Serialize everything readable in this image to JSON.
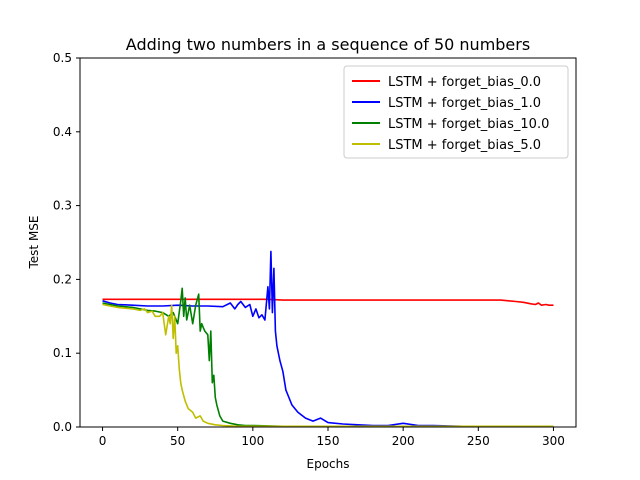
{
  "chart_data": {
    "type": "line",
    "title": "Adding two numbers in a sequence of 50 numbers",
    "xlabel": "Epochs",
    "ylabel": "Test MSE",
    "xlim": [
      -15,
      315
    ],
    "ylim": [
      0,
      0.5
    ],
    "xticks": [
      0,
      50,
      100,
      150,
      200,
      250,
      300
    ],
    "yticks": [
      0.0,
      0.1,
      0.2,
      0.3,
      0.4,
      0.5
    ],
    "ytick_labels": [
      "0.0",
      "0.1",
      "0.2",
      "0.3",
      "0.4",
      "0.5"
    ],
    "grid": false,
    "legend_position": "top-right",
    "series": [
      {
        "name": "LSTM + forget_bias_0.0",
        "color": "#ff0000",
        "x": [
          0,
          10,
          20,
          30,
          40,
          50,
          60,
          70,
          80,
          90,
          100,
          110,
          120,
          130,
          140,
          150,
          160,
          170,
          180,
          190,
          200,
          210,
          220,
          230,
          240,
          250,
          260,
          265,
          270,
          275,
          280,
          285,
          288,
          290,
          292,
          295,
          297,
          300
        ],
        "y": [
          0.173,
          0.173,
          0.173,
          0.173,
          0.173,
          0.173,
          0.173,
          0.173,
          0.173,
          0.173,
          0.173,
          0.173,
          0.172,
          0.172,
          0.172,
          0.172,
          0.172,
          0.172,
          0.172,
          0.172,
          0.172,
          0.172,
          0.172,
          0.172,
          0.172,
          0.172,
          0.172,
          0.172,
          0.171,
          0.17,
          0.169,
          0.167,
          0.166,
          0.168,
          0.165,
          0.166,
          0.165,
          0.165
        ]
      },
      {
        "name": "LSTM + forget_bias_1.0",
        "color": "#0000ff",
        "x": [
          0,
          5,
          10,
          20,
          30,
          40,
          50,
          60,
          70,
          80,
          85,
          88,
          90,
          92,
          95,
          98,
          100,
          102,
          104,
          106,
          108,
          110,
          111,
          112,
          113,
          114,
          115,
          116,
          118,
          120,
          122,
          124,
          126,
          128,
          130,
          135,
          140,
          145,
          150,
          160,
          170,
          180,
          190,
          200,
          210,
          220,
          240,
          260,
          280,
          300
        ],
        "y": [
          0.171,
          0.168,
          0.166,
          0.165,
          0.164,
          0.164,
          0.165,
          0.164,
          0.164,
          0.163,
          0.168,
          0.16,
          0.166,
          0.17,
          0.162,
          0.166,
          0.15,
          0.16,
          0.148,
          0.152,
          0.145,
          0.19,
          0.16,
          0.238,
          0.155,
          0.215,
          0.13,
          0.11,
          0.09,
          0.075,
          0.05,
          0.04,
          0.03,
          0.025,
          0.02,
          0.012,
          0.008,
          0.012,
          0.006,
          0.004,
          0.003,
          0.002,
          0.002,
          0.005,
          0.002,
          0.002,
          0.001,
          0.001,
          0.001,
          0.001
        ]
      },
      {
        "name": "LSTM + forget_bias_10.0",
        "color": "#008000",
        "x": [
          0,
          5,
          10,
          15,
          20,
          25,
          30,
          35,
          40,
          44,
          47,
          50,
          52,
          53,
          54,
          55,
          56,
          58,
          60,
          62,
          64,
          65,
          66,
          67,
          68,
          70,
          71,
          72,
          73,
          74,
          75,
          76,
          78,
          80,
          85,
          90,
          95,
          100,
          120,
          150,
          200,
          250,
          300
        ],
        "y": [
          0.168,
          0.166,
          0.164,
          0.163,
          0.162,
          0.16,
          0.158,
          0.157,
          0.155,
          0.15,
          0.155,
          0.14,
          0.17,
          0.188,
          0.15,
          0.175,
          0.145,
          0.165,
          0.14,
          0.165,
          0.18,
          0.13,
          0.14,
          0.135,
          0.13,
          0.125,
          0.09,
          0.13,
          0.06,
          0.07,
          0.04,
          0.03,
          0.015,
          0.008,
          0.005,
          0.003,
          0.002,
          0.002,
          0.001,
          0.001,
          0.001,
          0.001,
          0.001
        ]
      },
      {
        "name": "LSTM + forget_bias_5.0",
        "color": "#bfbf00",
        "x": [
          0,
          5,
          10,
          15,
          20,
          25,
          28,
          30,
          33,
          35,
          38,
          40,
          42,
          44,
          45,
          46,
          47,
          48,
          49,
          50,
          51,
          52,
          53,
          55,
          57,
          60,
          62,
          65,
          67,
          70,
          75,
          80,
          90,
          100,
          150,
          200,
          250,
          300
        ],
        "y": [
          0.166,
          0.164,
          0.162,
          0.161,
          0.16,
          0.158,
          0.16,
          0.155,
          0.157,
          0.15,
          0.15,
          0.155,
          0.125,
          0.15,
          0.14,
          0.165,
          0.12,
          0.15,
          0.1,
          0.11,
          0.08,
          0.06,
          0.05,
          0.035,
          0.025,
          0.02,
          0.012,
          0.015,
          0.008,
          0.005,
          0.003,
          0.002,
          0.001,
          0.001,
          0.001,
          0.001,
          0.001,
          0.001
        ]
      }
    ]
  }
}
